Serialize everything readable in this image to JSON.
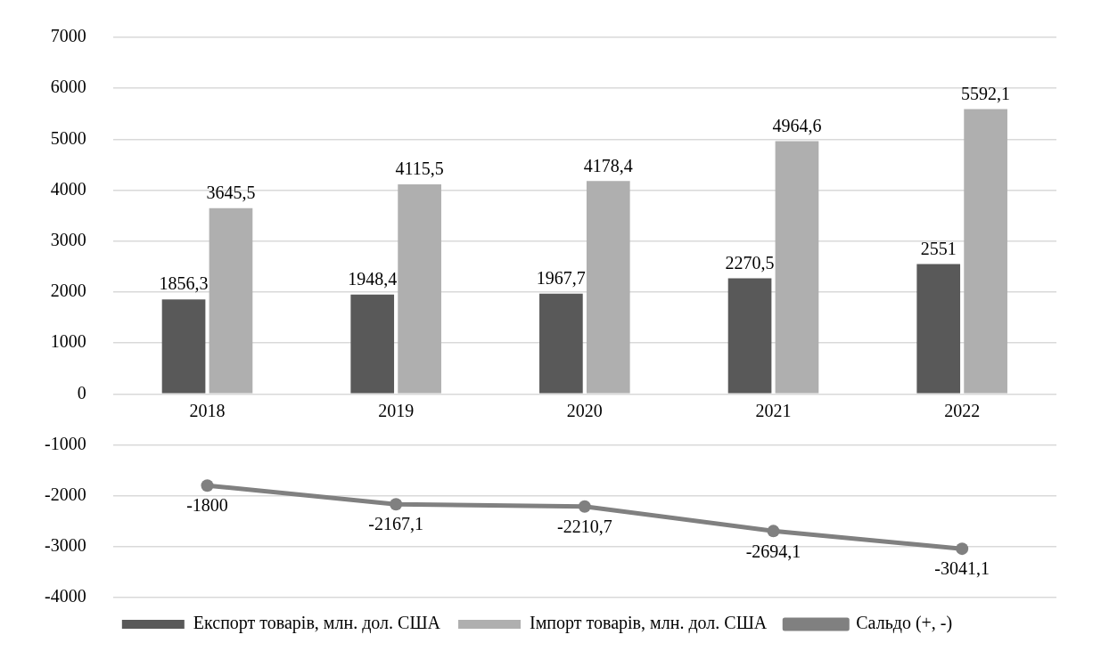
{
  "chart_data": {
    "type": "bar",
    "categories": [
      "2018",
      "2019",
      "2020",
      "2021",
      "2022"
    ],
    "series": [
      {
        "name": "Експорт товарів, млн. дол. США",
        "color": "#595959",
        "values": [
          1856.3,
          1948.4,
          1967.7,
          2270.5,
          2551
        ],
        "value_labels": [
          "1856,3",
          "1948,4",
          "1967,7",
          "2270,5",
          "2551"
        ]
      },
      {
        "name": "Імпорт товарів, млн. дол. США",
        "color": "#afafaf",
        "values": [
          3645.5,
          4115.5,
          4178.4,
          4964.6,
          5592.1
        ],
        "value_labels": [
          "3645,5",
          "4115,5",
          "4178,4",
          "4964,6",
          "5592,1"
        ]
      },
      {
        "name": "Сальдо (+, -)",
        "type": "line",
        "color": "#808080",
        "values": [
          -1800,
          -2167.1,
          -2210.7,
          -2694.1,
          -3041.1
        ],
        "value_labels": [
          "-1800",
          "-2167,1",
          "-2210,7",
          "-2694,1",
          "-3041,1"
        ]
      }
    ],
    "ylim": [
      -4000,
      7000
    ],
    "yticks": [
      -4000,
      -3000,
      -2000,
      -1000,
      0,
      1000,
      2000,
      3000,
      4000,
      5000,
      6000,
      7000
    ],
    "grid": "y",
    "legend": "bottom",
    "marker": "circle",
    "line_style": "solid"
  }
}
